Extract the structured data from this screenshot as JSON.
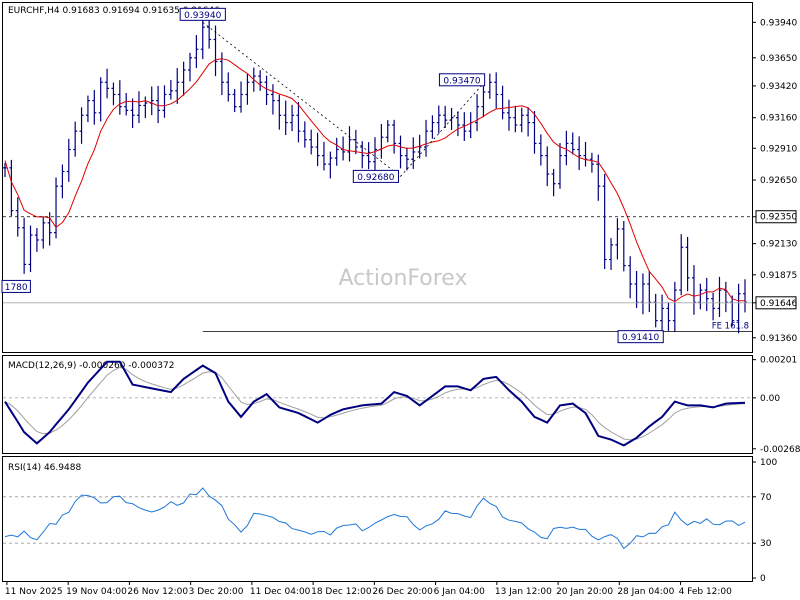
{
  "chart_data": [
    {
      "type": "line",
      "subtype": "ohlc-bars",
      "title": "EURCHF,H4  0.91683 0.91694 0.91635 0.91646",
      "ylim": [
        0.9126,
        0.9409
      ],
      "y_ticks": [
        "0.93940",
        "0.93650",
        "0.93420",
        "0.93160",
        "0.92910",
        "0.92650",
        "0.92350",
        "0.92130",
        "0.91875",
        "0.91646",
        "0.91360"
      ],
      "y_tick_values": [
        0.9394,
        0.9365,
        0.9342,
        0.9316,
        0.9291,
        0.9265,
        0.9235,
        0.9213,
        0.91875,
        0.91646,
        0.9136
      ],
      "x_ticks": [
        "11 Nov 2025",
        "19 Nov 04:00",
        "26 Nov 12:00",
        "3 Dec 20:00",
        "11 Dec 04:00",
        "18 Dec 12:00",
        "26 Dec 20:00",
        "6 Jan 04:00",
        "13 Jan 12:00",
        "20 Jan 20:00",
        "28 Jan 04:00",
        "4 Feb 12:00"
      ],
      "x_tick_pos": [
        0.3,
        9.9,
        19.5,
        29.1,
        38.7,
        48.3,
        57.9,
        67.5,
        77.1,
        86.7,
        96.3,
        105.9
      ],
      "close_anchors": [
        [
          0,
          0.9275
        ],
        [
          1,
          0.924
        ],
        [
          2,
          0.9226
        ],
        [
          3,
          0.9196
        ],
        [
          3.5,
          0.9178
        ],
        [
          4,
          0.922
        ],
        [
          5,
          0.9216
        ],
        [
          6,
          0.923
        ],
        [
          7,
          0.9222
        ],
        [
          8,
          0.926
        ],
        [
          9,
          0.9272
        ],
        [
          10,
          0.929
        ],
        [
          11,
          0.9305
        ],
        [
          12,
          0.9318
        ],
        [
          13,
          0.933
        ],
        [
          14,
          0.932
        ],
        [
          15,
          0.9345
        ],
        [
          16,
          0.934
        ],
        [
          17,
          0.9335
        ],
        [
          18,
          0.9325
        ],
        [
          19,
          0.9322
        ],
        [
          20,
          0.9318
        ],
        [
          21,
          0.9326
        ],
        [
          22,
          0.9328
        ],
        [
          23,
          0.933
        ],
        [
          24,
          0.9322
        ],
        [
          25,
          0.9335
        ],
        [
          26,
          0.9338
        ],
        [
          27,
          0.9345
        ],
        [
          28,
          0.9355
        ],
        [
          29,
          0.9365
        ],
        [
          30,
          0.9372
        ],
        [
          31,
          0.939
        ],
        [
          32,
          0.938
        ],
        [
          33,
          0.9362
        ],
        [
          34,
          0.9345
        ],
        [
          35,
          0.9335
        ],
        [
          36,
          0.9325
        ],
        [
          37,
          0.9335
        ],
        [
          38,
          0.9345
        ],
        [
          39,
          0.935
        ],
        [
          40,
          0.9345
        ],
        [
          41,
          0.9335
        ],
        [
          42,
          0.933
        ],
        [
          43,
          0.9318
        ],
        [
          44,
          0.9312
        ],
        [
          45,
          0.9318
        ],
        [
          46,
          0.9305
        ],
        [
          47,
          0.9298
        ],
        [
          48,
          0.9292
        ],
        [
          49,
          0.9285
        ],
        [
          50,
          0.9278
        ],
        [
          51,
          0.9283
        ],
        [
          52,
          0.929
        ],
        [
          53,
          0.9288
        ],
        [
          54,
          0.9298
        ],
        [
          55,
          0.9292
        ],
        [
          56,
          0.9285
        ],
        [
          57,
          0.928
        ],
        [
          58,
          0.929
        ],
        [
          59,
          0.93
        ],
        [
          60,
          0.931
        ],
        [
          61,
          0.9295
        ],
        [
          62,
          0.9285
        ],
        [
          63,
          0.9282
        ],
        [
          64,
          0.9288
        ],
        [
          65,
          0.9292
        ],
        [
          66,
          0.9305
        ],
        [
          67,
          0.9312
        ],
        [
          68,
          0.9318
        ],
        [
          69,
          0.9314
        ],
        [
          70,
          0.9316
        ],
        [
          71,
          0.931
        ],
        [
          72,
          0.9305
        ],
        [
          73,
          0.9312
        ],
        [
          74,
          0.9325
        ],
        [
          75,
          0.9337
        ],
        [
          76,
          0.9345
        ],
        [
          77,
          0.9335
        ],
        [
          78,
          0.932
        ],
        [
          79,
          0.9316
        ],
        [
          80,
          0.931
        ],
        [
          81,
          0.9318
        ],
        [
          82,
          0.9312
        ],
        [
          83,
          0.9295
        ],
        [
          84,
          0.9285
        ],
        [
          85,
          0.927
        ],
        [
          86,
          0.9262
        ],
        [
          87,
          0.9285
        ],
        [
          88,
          0.9295
        ],
        [
          89,
          0.929
        ],
        [
          90,
          0.9285
        ],
        [
          91,
          0.9282
        ],
        [
          92,
          0.9278
        ],
        [
          93,
          0.926
        ],
        [
          94,
          0.92
        ],
        [
          95,
          0.9212
        ],
        [
          96,
          0.9225
        ],
        [
          97,
          0.9195
        ],
        [
          98,
          0.918
        ],
        [
          99,
          0.9165
        ],
        [
          100,
          0.918
        ],
        [
          101,
          0.9165
        ],
        [
          102,
          0.915
        ],
        [
          103,
          0.916
        ],
        [
          104,
          0.915
        ],
        [
          105,
          0.9175
        ],
        [
          106,
          0.921
        ],
        [
          107,
          0.9185
        ],
        [
          108,
          0.9165
        ],
        [
          109,
          0.9175
        ],
        [
          110,
          0.9168
        ],
        [
          111,
          0.916
        ],
        [
          112,
          0.9175
        ],
        [
          113,
          0.9165
        ],
        [
          114,
          0.915
        ],
        [
          115,
          0.9172
        ],
        [
          116,
          0.9165
        ]
      ],
      "series": [
        {
          "name": "",
          "color": "#000080",
          "kind": "ohlc"
        },
        {
          "name": "",
          "color": "#e00000",
          "kind": "moving-average"
        }
      ],
      "annotations": [
        {
          "text": "0.93940",
          "x": 31,
          "y": 0.9394
        },
        {
          "text": "0.93470",
          "x": 75.5,
          "y": 0.9347
        },
        {
          "text": "0.92680",
          "x": 62,
          "y": 0.9268
        },
        {
          "text": "0.91410",
          "x": 103.5,
          "y": 0.9141
        },
        {
          "text": "1780",
          "x": 3.5,
          "y": 0.9178
        }
      ],
      "hlines": [
        {
          "y": 0.9235,
          "style": "dashed",
          "label": "0.92350"
        },
        {
          "y": 0.9141,
          "style": "solid",
          "from_x": 31,
          "label": "FE 161.8"
        }
      ],
      "trendlines": [
        {
          "from": [
            31,
            0.9394
          ],
          "to": [
            62,
            0.9268
          ],
          "style": "dotted"
        },
        {
          "from": [
            62,
            0.9268
          ],
          "to": [
            75.5,
            0.9347
          ],
          "style": "dotted"
        }
      ],
      "watermark": "ActionForex",
      "grid": false
    },
    {
      "type": "line",
      "title": "MACD(12,26,9) -0.000260 -0.000372",
      "ylim": [
        -0.00285,
        0.00215
      ],
      "y_ticks": [
        "0.00201",
        "0.00",
        "-0.002681"
      ],
      "y_tick_values": [
        0.00201,
        0.0,
        -0.002681
      ],
      "series": [
        {
          "name": "",
          "color": "#000080",
          "kind": "macd-line"
        },
        {
          "name": "",
          "color": "#a0a0a0",
          "kind": "signal"
        }
      ],
      "macd_anchors": [
        [
          0,
          -0.0002
        ],
        [
          3,
          -0.0018
        ],
        [
          5,
          -0.0024
        ],
        [
          7,
          -0.0018
        ],
        [
          10,
          -0.0006
        ],
        [
          13,
          0.0008
        ],
        [
          16,
          0.0019
        ],
        [
          18,
          0.0019
        ],
        [
          20,
          0.0007
        ],
        [
          23,
          0.0005
        ],
        [
          26,
          0.0003
        ],
        [
          28,
          0.001
        ],
        [
          31,
          0.0017
        ],
        [
          33,
          0.0013
        ],
        [
          35,
          -0.0002
        ],
        [
          37,
          -0.001
        ],
        [
          39,
          -0.0002
        ],
        [
          41,
          0.0002
        ],
        [
          43,
          -0.0005
        ],
        [
          46,
          -0.0008
        ],
        [
          49,
          -0.0013
        ],
        [
          51,
          -0.0009
        ],
        [
          53,
          -0.0006
        ],
        [
          56,
          -0.0004
        ],
        [
          59,
          -0.0003
        ],
        [
          61,
          0.0003
        ],
        [
          63,
          0.0001
        ],
        [
          65,
          -0.0004
        ],
        [
          67,
          0.0001
        ],
        [
          69,
          0.0006
        ],
        [
          71,
          0.0006
        ],
        [
          73,
          0.0004
        ],
        [
          75,
          0.001
        ],
        [
          77,
          0.0011
        ],
        [
          79,
          0.0004
        ],
        [
          81,
          -0.0002
        ],
        [
          83,
          -0.001
        ],
        [
          85,
          -0.0013
        ],
        [
          87,
          -0.0004
        ],
        [
          89,
          -0.0003
        ],
        [
          91,
          -0.0008
        ],
        [
          93,
          -0.002
        ],
        [
          95,
          -0.0022
        ],
        [
          97,
          -0.0025
        ],
        [
          99,
          -0.0021
        ],
        [
          101,
          -0.0015
        ],
        [
          103,
          -0.001
        ],
        [
          105,
          -0.0002
        ],
        [
          107,
          -0.0004
        ],
        [
          109,
          -0.0004
        ],
        [
          111,
          -0.0005
        ],
        [
          113,
          -0.0003
        ],
        [
          116,
          -0.00026
        ]
      ]
    },
    {
      "type": "line",
      "title": "RSI(14) 46.9488",
      "ylim": [
        0,
        100
      ],
      "y_ticks": [
        "100",
        "70",
        "30",
        "0"
      ],
      "y_tick_values": [
        100,
        70,
        30,
        0
      ],
      "hlines": [
        {
          "y": 70,
          "style": "dashed"
        },
        {
          "y": 30,
          "style": "dashed"
        }
      ],
      "series": [
        {
          "name": "",
          "color": "#1e78d8",
          "kind": "rsi"
        }
      ],
      "rsi_anchors": [
        [
          0,
          33
        ],
        [
          3,
          38
        ],
        [
          5,
          32
        ],
        [
          7,
          45
        ],
        [
          9,
          52
        ],
        [
          11,
          67
        ],
        [
          13,
          70
        ],
        [
          15,
          63
        ],
        [
          17,
          73
        ],
        [
          19,
          68
        ],
        [
          21,
          60
        ],
        [
          23,
          57
        ],
        [
          25,
          63
        ],
        [
          27,
          65
        ],
        [
          29,
          70
        ],
        [
          31,
          75
        ],
        [
          33,
          68
        ],
        [
          35,
          52
        ],
        [
          37,
          40
        ],
        [
          39,
          53
        ],
        [
          41,
          56
        ],
        [
          43,
          48
        ],
        [
          45,
          45
        ],
        [
          47,
          42
        ],
        [
          49,
          38
        ],
        [
          51,
          40
        ],
        [
          53,
          46
        ],
        [
          55,
          44
        ],
        [
          57,
          42
        ],
        [
          59,
          48
        ],
        [
          61,
          57
        ],
        [
          63,
          50
        ],
        [
          65,
          40
        ],
        [
          67,
          48
        ],
        [
          69,
          55
        ],
        [
          71,
          55
        ],
        [
          73,
          52
        ],
        [
          75,
          70
        ],
        [
          77,
          60
        ],
        [
          79,
          50
        ],
        [
          81,
          46
        ],
        [
          83,
          38
        ],
        [
          85,
          34
        ],
        [
          87,
          46
        ],
        [
          89,
          44
        ],
        [
          91,
          40
        ],
        [
          93,
          33
        ],
        [
          95,
          36
        ],
        [
          97,
          28
        ],
        [
          99,
          34
        ],
        [
          101,
          40
        ],
        [
          103,
          42
        ],
        [
          105,
          55
        ],
        [
          107,
          46
        ],
        [
          109,
          50
        ],
        [
          111,
          47
        ],
        [
          113,
          50
        ],
        [
          116,
          46.95
        ]
      ]
    }
  ]
}
